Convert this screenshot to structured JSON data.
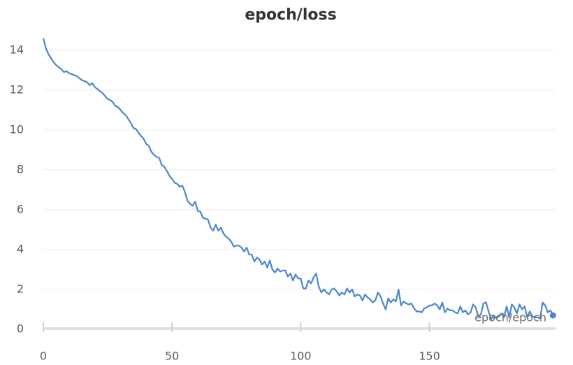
{
  "chart_data": {
    "type": "line",
    "title": "epoch/loss",
    "x_label": "epoch/epoch",
    "x": [
      0,
      1,
      2,
      3,
      4,
      5,
      6,
      7,
      8,
      9,
      10,
      11,
      12,
      13,
      14,
      15,
      16,
      17,
      18,
      19,
      20,
      21,
      22,
      23,
      24,
      25,
      26,
      27,
      28,
      29,
      30,
      31,
      32,
      33,
      34,
      35,
      36,
      37,
      38,
      39,
      40,
      41,
      42,
      43,
      44,
      45,
      46,
      47,
      48,
      49,
      50,
      51,
      52,
      53,
      54,
      55,
      56,
      57,
      58,
      59,
      60,
      61,
      62,
      63,
      64,
      65,
      66,
      67,
      68,
      69,
      70,
      71,
      72,
      73,
      74,
      75,
      76,
      77,
      78,
      79,
      80,
      81,
      82,
      83,
      84,
      85,
      86,
      87,
      88,
      89,
      90,
      91,
      92,
      93,
      94,
      95,
      96,
      97,
      98,
      99,
      100,
      101,
      102,
      103,
      104,
      105,
      106,
      107,
      108,
      109,
      110,
      111,
      112,
      113,
      114,
      115,
      116,
      117,
      118,
      119,
      120,
      121,
      122,
      123,
      124,
      125,
      126,
      127,
      128,
      129,
      130,
      131,
      132,
      133,
      134,
      135,
      136,
      137,
      138,
      139,
      140,
      141,
      142,
      143,
      144,
      145,
      146,
      147,
      148,
      149,
      150,
      151,
      152,
      153,
      154,
      155,
      156,
      157,
      158,
      159,
      160,
      161,
      162,
      163,
      164,
      165,
      166,
      167,
      168,
      169,
      170,
      171,
      172,
      173,
      174,
      175,
      176,
      177,
      178,
      179,
      180,
      181,
      182,
      183,
      184,
      185,
      186,
      187,
      188,
      189,
      190,
      191,
      192,
      193,
      194,
      195,
      196,
      197,
      198
    ],
    "series": [
      {
        "name": "epoch/loss",
        "color": "#4a86cf",
        "values": [
          14.6,
          14.1,
          13.8,
          13.6,
          13.4,
          13.25,
          13.15,
          13.05,
          12.9,
          12.95,
          12.85,
          12.8,
          12.75,
          12.7,
          12.6,
          12.5,
          12.45,
          12.4,
          12.25,
          12.35,
          12.15,
          12.05,
          11.95,
          11.85,
          11.7,
          11.55,
          11.5,
          11.4,
          11.2,
          11.15,
          11.0,
          10.85,
          10.75,
          10.55,
          10.35,
          10.1,
          10.05,
          9.85,
          9.7,
          9.55,
          9.3,
          9.2,
          8.9,
          8.75,
          8.65,
          8.6,
          8.25,
          8.15,
          7.95,
          7.7,
          7.55,
          7.35,
          7.3,
          7.15,
          7.2,
          6.9,
          6.45,
          6.3,
          6.2,
          6.4,
          5.95,
          5.9,
          5.6,
          5.55,
          5.5,
          5.1,
          4.95,
          5.25,
          4.95,
          5.1,
          4.8,
          4.65,
          4.55,
          4.4,
          4.15,
          4.2,
          4.2,
          4.1,
          3.9,
          4.1,
          3.75,
          3.75,
          3.4,
          3.6,
          3.5,
          3.25,
          3.4,
          3.1,
          3.45,
          3.0,
          2.85,
          3.05,
          2.9,
          2.95,
          2.95,
          2.65,
          2.8,
          2.45,
          2.75,
          2.55,
          2.55,
          2.05,
          2.05,
          2.45,
          2.3,
          2.6,
          2.8,
          2.15,
          1.85,
          2.0,
          1.85,
          1.75,
          2.0,
          2.05,
          1.9,
          1.7,
          1.85,
          1.75,
          2.05,
          1.85,
          2.0,
          1.65,
          1.75,
          1.7,
          1.45,
          1.75,
          1.6,
          1.5,
          1.35,
          1.45,
          1.85,
          1.65,
          1.3,
          1.0,
          1.55,
          1.35,
          1.5,
          1.4,
          2.0,
          1.2,
          1.4,
          1.3,
          1.25,
          1.3,
          1.05,
          0.9,
          0.9,
          0.85,
          1.05,
          1.1,
          1.2,
          1.2,
          1.3,
          1.2,
          1.0,
          1.35,
          0.85,
          1.05,
          0.95,
          0.95,
          0.85,
          0.8,
          1.15,
          0.85,
          0.95,
          0.75,
          0.85,
          1.25,
          1.1,
          0.65,
          0.75,
          1.3,
          1.35,
          0.9,
          0.5,
          0.7,
          0.55,
          0.65,
          0.8,
          0.6,
          1.15,
          0.6,
          1.25,
          1.1,
          0.8,
          1.25,
          1.0,
          1.15,
          0.6,
          0.9,
          0.65,
          0.6,
          0.6,
          0.55,
          1.35,
          1.2,
          0.85,
          0.95,
          0.7
        ]
      }
    ],
    "xlim": [
      0,
      199
    ],
    "xticks": [
      0,
      50,
      100,
      150
    ],
    "ylim": [
      0,
      14.8
    ],
    "yticks": [
      0,
      2,
      4,
      6,
      8,
      10,
      12,
      14
    ],
    "grid": true
  }
}
